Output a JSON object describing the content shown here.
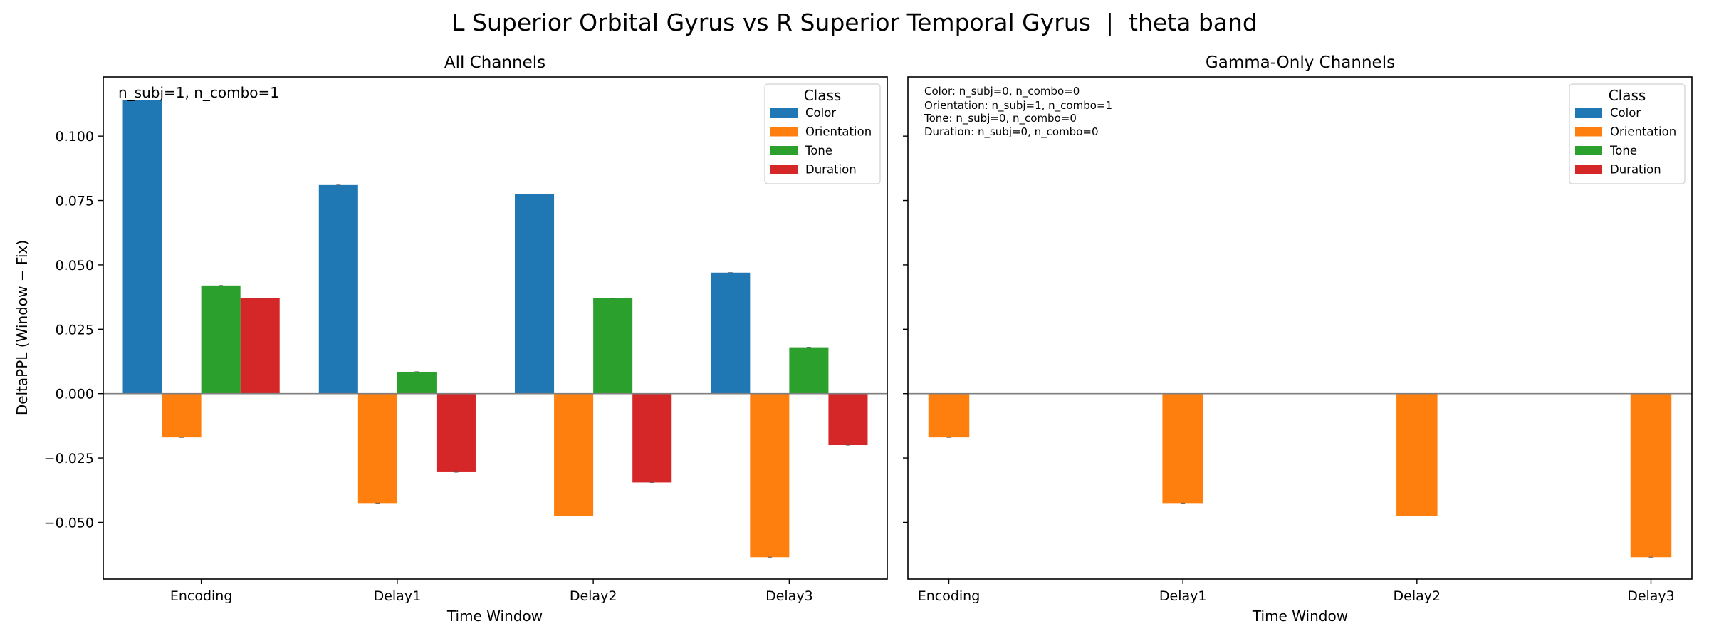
{
  "figure": {
    "title": "L Superior Orbital Gyrus vs R Superior Temporal Gyrus  |  theta band"
  },
  "colors": {
    "Color": "#1f77b4",
    "Orientation": "#ff7f0e",
    "Tone": "#2ca02c",
    "Duration": "#d62728"
  },
  "chart_data": [
    {
      "type": "bar",
      "title": "All Channels",
      "xlabel": "Time Window",
      "ylabel": "DeltaPPL (Window − Fix)",
      "categories": [
        "Encoding",
        "Delay1",
        "Delay2",
        "Delay3"
      ],
      "series": [
        {
          "name": "Color",
          "values": [
            0.114,
            0.081,
            0.0775,
            0.047
          ]
        },
        {
          "name": "Orientation",
          "values": [
            -0.017,
            -0.0425,
            -0.0475,
            -0.0635
          ]
        },
        {
          "name": "Tone",
          "values": [
            0.042,
            0.0085,
            0.037,
            0.018
          ]
        },
        {
          "name": "Duration",
          "values": [
            0.037,
            -0.0305,
            -0.0345,
            -0.02
          ]
        }
      ],
      "yticks": [
        -0.05,
        -0.025,
        0.0,
        0.025,
        0.05,
        0.075,
        0.1
      ],
      "ytick_labels": [
        "−0.050",
        "−0.025",
        "0.000",
        "0.025",
        "0.050",
        "0.075",
        "0.100"
      ],
      "ylim": [
        -0.072,
        0.123
      ],
      "legend": {
        "title": "Class",
        "entries": [
          "Color",
          "Orientation",
          "Tone",
          "Duration"
        ],
        "position": "top-right"
      },
      "annotations": [
        "n_subj=1, n_combo=1"
      ],
      "grid": false
    },
    {
      "type": "bar",
      "title": "Gamma-Only Channels",
      "xlabel": "Time Window",
      "ylabel": "",
      "categories": [
        "Encoding",
        "Delay1",
        "Delay2",
        "Delay3"
      ],
      "series": [
        {
          "name": "Orientation",
          "values": [
            -0.017,
            -0.0425,
            -0.0475,
            -0.0635
          ]
        }
      ],
      "ylim": [
        -0.072,
        0.123
      ],
      "shared_y": true,
      "legend": {
        "title": "Class",
        "entries": [
          "Color",
          "Orientation",
          "Tone",
          "Duration"
        ],
        "position": "top-right"
      },
      "annotations": [
        "Color: n_subj=0, n_combo=0",
        "Orientation: n_subj=1, n_combo=1",
        "Tone: n_subj=0, n_combo=0",
        "Duration: n_subj=0, n_combo=0"
      ],
      "grid": false
    }
  ]
}
